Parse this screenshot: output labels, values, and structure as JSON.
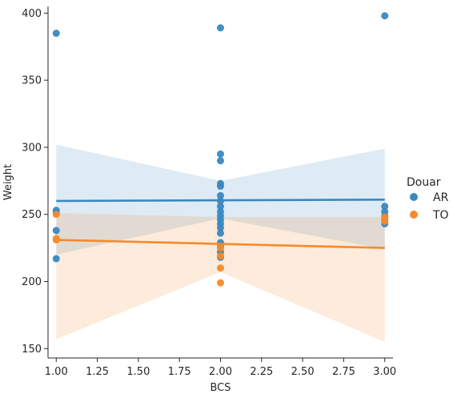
{
  "chart_data": {
    "type": "scatter",
    "xlabel": "BCS",
    "ylabel": "Weight",
    "xlim": [
      0.95,
      3.05
    ],
    "ylim": [
      143,
      405
    ],
    "xticks": [
      1.0,
      1.25,
      1.5,
      1.75,
      2.0,
      2.25,
      2.5,
      2.75,
      3.0
    ],
    "xtick_labels": [
      "1.00",
      "1.25",
      "1.50",
      "1.75",
      "2.00",
      "2.25",
      "2.50",
      "2.75",
      "3.00"
    ],
    "yticks": [
      150,
      200,
      250,
      300,
      350,
      400
    ],
    "ytick_labels": [
      "150",
      "200",
      "250",
      "300",
      "350",
      "400"
    ],
    "grid": false,
    "legend": {
      "title": "Douar",
      "placement": "right"
    },
    "series": [
      {
        "name": "AR",
        "color": "#3a88c0",
        "points": [
          [
            1,
            385
          ],
          [
            1,
            253
          ],
          [
            1,
            251
          ],
          [
            1,
            238
          ],
          [
            1,
            217
          ],
          [
            2,
            389
          ],
          [
            2,
            295
          ],
          [
            2,
            290
          ],
          [
            2,
            273
          ],
          [
            2,
            271
          ],
          [
            2,
            264
          ],
          [
            2,
            260
          ],
          [
            2,
            256
          ],
          [
            2,
            252
          ],
          [
            2,
            249
          ],
          [
            2,
            246
          ],
          [
            2,
            243
          ],
          [
            2,
            240
          ],
          [
            2,
            236
          ],
          [
            2,
            229
          ],
          [
            2,
            226
          ],
          [
            2,
            222
          ],
          [
            2,
            218
          ],
          [
            3,
            398
          ],
          [
            3,
            256
          ],
          [
            3,
            252
          ],
          [
            3,
            249
          ],
          [
            3,
            246
          ],
          [
            3,
            243
          ]
        ],
        "regression": {
          "x": [
            1,
            3
          ],
          "y": [
            260,
            261
          ]
        },
        "ci_band": {
          "x": [
            1,
            2,
            3
          ],
          "lower": [
            220,
            247,
            224
          ],
          "upper": [
            302,
            275,
            299
          ]
        }
      },
      {
        "name": "TO",
        "color": "#f58a2c",
        "points": [
          [
            1,
            250
          ],
          [
            1,
            232
          ],
          [
            1,
            231
          ],
          [
            2,
            225
          ],
          [
            2,
            219
          ],
          [
            2,
            210
          ],
          [
            2,
            199
          ],
          [
            3,
            248
          ],
          [
            3,
            245
          ]
        ],
        "regression": {
          "x": [
            1,
            3
          ],
          "y": [
            231,
            225
          ]
        },
        "ci_band": {
          "x": [
            1,
            2,
            3
          ],
          "lower": [
            157,
            207,
            155
          ],
          "upper": [
            251,
            248,
            248
          ]
        }
      }
    ]
  }
}
